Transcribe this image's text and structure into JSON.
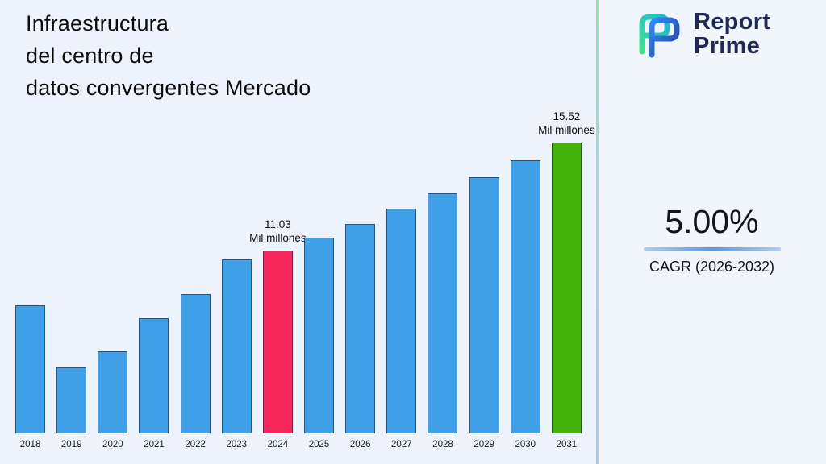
{
  "title": {
    "lines": [
      "Infraestructura",
      "del centro de",
      "datos convergentes Mercado"
    ]
  },
  "logo": {
    "brand_line1": "Report",
    "brand_line2": "Prime",
    "text_color": "#1e2a52"
  },
  "cagr": {
    "value": "5.00%",
    "label": "CAGR (2026-2032)"
  },
  "chart_data": {
    "type": "bar",
    "title": "Infraestructura del centro de datos convergentes Mercado",
    "xlabel": "",
    "ylabel": "Mil millones",
    "unit": "Mil millones",
    "categories": [
      "2018",
      "2019",
      "2020",
      "2021",
      "2022",
      "2023",
      "2024",
      "2025",
      "2026",
      "2027",
      "2028",
      "2029",
      "2030",
      "2031"
    ],
    "values": [
      8.75,
      6.17,
      6.84,
      8.21,
      9.22,
      10.66,
      11.03,
      11.58,
      12.16,
      12.77,
      13.41,
      14.08,
      14.78,
      15.52
    ],
    "bar_color": "#3FA0E8",
    "highlights": {
      "2024": "#F7265D",
      "2031": "#43B30C"
    },
    "annotations": [
      {
        "category": "2024",
        "lines": [
          "11.03",
          "Mil millones"
        ]
      },
      {
        "category": "2031",
        "lines": [
          "15.52",
          "Mil millones"
        ]
      }
    ],
    "grid": false,
    "legend": "none",
    "axis_visible": false
  }
}
